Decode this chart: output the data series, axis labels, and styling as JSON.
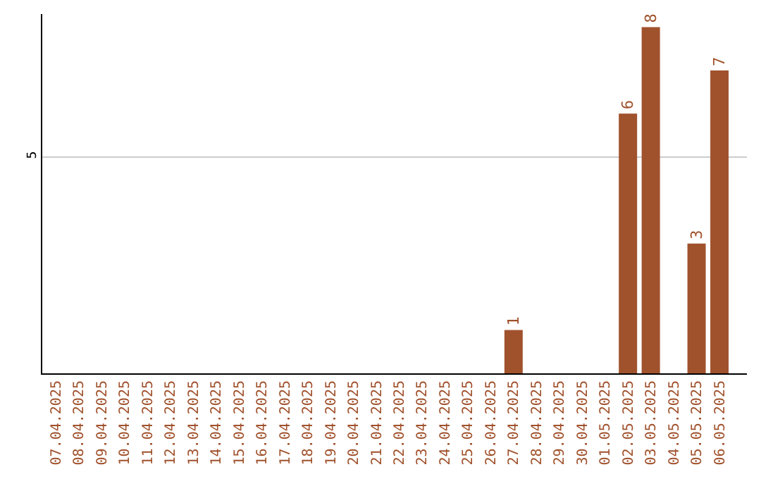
{
  "chart_data": {
    "type": "bar",
    "categories": [
      "07.04.2025",
      "08.04.2025",
      "09.04.2025",
      "10.04.2025",
      "11.04.2025",
      "12.04.2025",
      "13.04.2025",
      "14.04.2025",
      "15.04.2025",
      "16.04.2025",
      "17.04.2025",
      "18.04.2025",
      "19.04.2025",
      "20.04.2025",
      "21.04.2025",
      "22.04.2025",
      "23.04.2025",
      "24.04.2025",
      "25.04.2025",
      "26.04.2025",
      "27.04.2025",
      "28.04.2025",
      "29.04.2025",
      "30.04.2025",
      "01.05.2025",
      "02.05.2025",
      "03.05.2025",
      "04.05.2025",
      "05.05.2025",
      "06.05.2025"
    ],
    "values": [
      null,
      null,
      null,
      null,
      null,
      null,
      null,
      null,
      null,
      null,
      null,
      null,
      null,
      null,
      null,
      null,
      null,
      null,
      null,
      null,
      1,
      null,
      null,
      null,
      null,
      6,
      8,
      null,
      3,
      7
    ],
    "color": "#a0522d",
    "ylim": [
      0,
      8.3
    ],
    "yticks": [
      5
    ],
    "grid": "y",
    "data_labels": true
  }
}
